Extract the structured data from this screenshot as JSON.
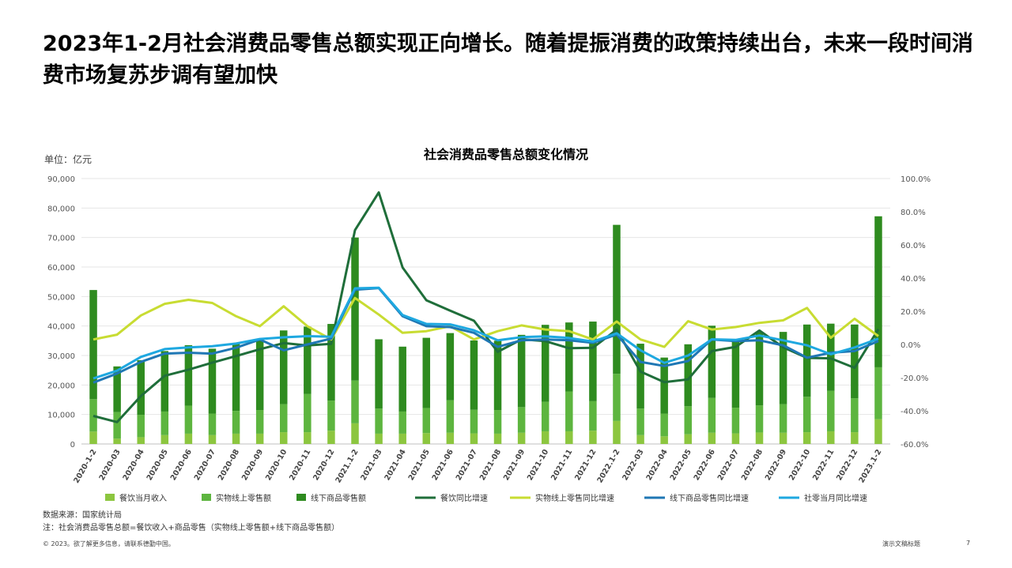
{
  "slide": {
    "headline": "2023年1-2月社会消费品零售总额实现正向增长。随着提振消费的政策持续出台，未来一段时间消费市场复苏步调有望加快",
    "source": "数据来源：国家统计局",
    "note": "注：社会消费品零售总额=餐饮收入+商品零售（实物线上零售额+线下商品零售额）",
    "copyright": "© 2023。欲了解更多信息，请联系德勤中国。",
    "deck_title": "演示文稿标题",
    "page_number": "7"
  },
  "chart_data": {
    "type": "bar",
    "title": "社会消费品零售总额变化情况",
    "unit_label": "单位：亿元",
    "stacked": true,
    "categories": [
      "2020-1-2",
      "2020-03",
      "2020-04",
      "2020-05",
      "2020-06",
      "2020-07",
      "2020-08",
      "2020-09",
      "2020-10",
      "2020-11",
      "2020-12",
      "2021.1-2",
      "2021-03",
      "2021-04",
      "2021-05",
      "2021-06",
      "2021-07",
      "2021-08",
      "2021-09",
      "2021-10",
      "2021-11",
      "2021-12",
      "2022.1-2",
      "2022-03",
      "2022-04",
      "2022-05",
      "2022-06",
      "2022-07",
      "2022-08",
      "2022-09",
      "2022-10",
      "2022-11",
      "2022-12",
      "2023.1-2"
    ],
    "y_left": {
      "min": 0,
      "max": 90000,
      "ticks": [
        "0",
        "10,000",
        "20,000",
        "30,000",
        "40,000",
        "50,000",
        "60,000",
        "70,000",
        "80,000",
        "90,000"
      ]
    },
    "y_right": {
      "min": -60,
      "max": 100,
      "ticks": [
        "-60.0%",
        "-40.0%",
        "-20.0%",
        "0.0%",
        "20.0%",
        "40.0%",
        "60.0%",
        "80.0%",
        "100.0%"
      ]
    },
    "bar_series": [
      {
        "name": "餐饮当月收入",
        "color": "#8CC63F",
        "values": [
          4200,
          1800,
          2300,
          3000,
          3500,
          3000,
          3500,
          3500,
          4000,
          4000,
          4500,
          7000,
          3500,
          3500,
          3700,
          3800,
          3600,
          3500,
          3800,
          4300,
          4300,
          4500,
          7800,
          3000,
          2600,
          3300,
          3800,
          3600,
          3900,
          3800,
          4000,
          4300,
          4000,
          8400
        ]
      },
      {
        "name": "实物线上零售额",
        "color": "#5DB53F",
        "values": [
          11000,
          9000,
          7600,
          8000,
          9500,
          7300,
          7700,
          8000,
          9500,
          13000,
          10200,
          14500,
          8500,
          7500,
          8500,
          11000,
          8000,
          8000,
          8700,
          10000,
          13500,
          10000,
          16000,
          9000,
          7700,
          9500,
          11800,
          8700,
          9200,
          9700,
          12000,
          13700,
          11500,
          17600
        ]
      },
      {
        "name": "线下商品零售额",
        "color": "#2E8B1F",
        "values": [
          37000,
          15500,
          18500,
          20500,
          20500,
          22000,
          23000,
          24000,
          25000,
          22800,
          26000,
          48500,
          23500,
          22000,
          23800,
          22800,
          23500,
          23500,
          24500,
          26100,
          23400,
          27000,
          50500,
          22000,
          19000,
          21000,
          24500,
          23000,
          24900,
          24500,
          24500,
          22800,
          25000,
          51200
        ]
      }
    ],
    "line_series": [
      {
        "name": "餐饮同比增速",
        "color": "#1F6E3A",
        "values": [
          -43.1,
          -46.8,
          -31.1,
          -18.9,
          -15.2,
          -11.0,
          -7.0,
          -2.9,
          0.8,
          -0.6,
          0.4,
          68.9,
          91.6,
          46.4,
          26.6,
          20.4,
          14.3,
          -4.5,
          3.1,
          2.0,
          -2.3,
          -2.0,
          8.9,
          -16.4,
          -22.7,
          -21.1,
          -4.0,
          -1.5,
          8.4,
          -1.7,
          -8.1,
          -8.4,
          -14.1,
          9.2
        ]
      },
      {
        "name": "实物线上零售同比增速",
        "color": "#C8DC32",
        "values": [
          3.0,
          5.9,
          17.5,
          24.5,
          26.9,
          25.0,
          17.0,
          11.0,
          23.0,
          11.0,
          3.0,
          28.0,
          18.0,
          7.0,
          8.0,
          11.0,
          3.0,
          8.0,
          11.5,
          9.0,
          8.0,
          3.0,
          13.8,
          3.0,
          -1.5,
          14.0,
          9.0,
          10.5,
          13.0,
          14.5,
          22.0,
          4.0,
          15.5,
          5.0
        ]
      },
      {
        "name": "线下商品零售同比增速",
        "color": "#1F77B4",
        "values": [
          -23.0,
          -17.5,
          -10.5,
          -5.5,
          -5.0,
          -5.5,
          -2.0,
          3.0,
          -3.5,
          0.0,
          3.5,
          33.0,
          34.0,
          17.0,
          11.0,
          10.5,
          7.0,
          -1.5,
          2.5,
          3.0,
          2.5,
          1.0,
          6.0,
          -10.5,
          -13.0,
          -10.0,
          3.0,
          2.0,
          2.5,
          -0.5,
          -8.0,
          -5.0,
          -4.0,
          2.0
        ]
      },
      {
        "name": "社零当月同比增速",
        "color": "#1EA8E0",
        "values": [
          -20.5,
          -15.8,
          -7.5,
          -2.8,
          -1.8,
          -1.1,
          0.5,
          3.3,
          4.3,
          5.0,
          4.6,
          33.8,
          34.2,
          17.7,
          12.4,
          12.1,
          8.5,
          2.5,
          4.4,
          4.9,
          3.9,
          1.7,
          6.7,
          -3.5,
          -11.1,
          -6.7,
          3.1,
          2.7,
          5.4,
          2.5,
          -0.5,
          -5.9,
          -1.8,
          3.5
        ]
      }
    ]
  }
}
